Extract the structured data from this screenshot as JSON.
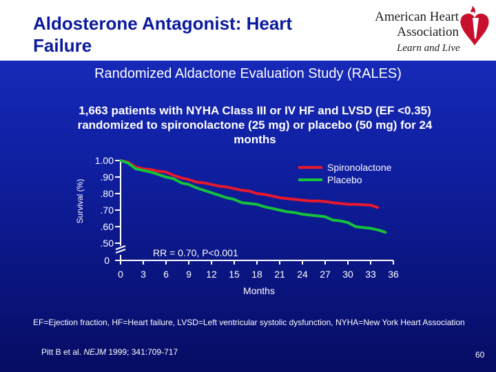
{
  "slide": {
    "title": "Aldosterone Antagonist: Heart Failure",
    "subtitle": "Randomized Aldactone Evaluation Study (RALES)",
    "description": "1,663 patients with NYHA Class III or IV HF and LVSD (EF <0.35) randomized to spironolactone (25 mg) or placebo (50 mg) for 24 months",
    "footnote": "EF=Ejection fraction, HF=Heart failure, LVSD=Left ventricular systolic dysfunction, NYHA=New York Heart Association",
    "citation_pre": "Pitt B et al. ",
    "citation_journal": "NEJM",
    "citation_post": " 1999; 341:709-717",
    "page_number": "60"
  },
  "logo": {
    "line1": "American Heart",
    "line2": "Association",
    "tagline": "Learn and Live"
  },
  "chart_data": {
    "type": "line",
    "title": "",
    "xlabel": "Months",
    "ylabel": "Survival (%)",
    "x_ticks": [
      0,
      3,
      6,
      9,
      12,
      15,
      18,
      21,
      24,
      27,
      30,
      33,
      36
    ],
    "y_ticks": [
      1.0,
      0.9,
      0.8,
      0.7,
      0.6,
      0.5
    ],
    "y_tick_labels": [
      "1.00",
      ".90",
      ".80",
      ".70",
      ".60",
      ".50"
    ],
    "y_zero_label": "0",
    "xlim": [
      0,
      36
    ],
    "ylim": [
      0.5,
      1.0
    ],
    "axis_break": true,
    "annotation": "RR = 0.70, P<0.001",
    "legend_position": "top-right",
    "colors": {
      "Spironolactone": "#e8192c",
      "Placebo": "#16c23a",
      "axis": "#ffffff"
    },
    "series": [
      {
        "name": "Spironolactone",
        "x": [
          0,
          1,
          2,
          3,
          4,
          5,
          6,
          7,
          8,
          9,
          10,
          11,
          12,
          13,
          14,
          15,
          16,
          17,
          18,
          19,
          20,
          21,
          22,
          23,
          24,
          25,
          26,
          27,
          28,
          29,
          30,
          31,
          32,
          33,
          34
        ],
        "y": [
          1.0,
          0.99,
          0.96,
          0.95,
          0.945,
          0.935,
          0.93,
          0.91,
          0.895,
          0.885,
          0.87,
          0.865,
          0.855,
          0.845,
          0.84,
          0.83,
          0.82,
          0.815,
          0.8,
          0.795,
          0.785,
          0.775,
          0.77,
          0.765,
          0.76,
          0.755,
          0.755,
          0.752,
          0.745,
          0.74,
          0.735,
          0.735,
          0.732,
          0.73,
          0.715
        ]
      },
      {
        "name": "Placebo",
        "x": [
          0,
          1,
          2,
          3,
          4,
          5,
          6,
          7,
          8,
          9,
          10,
          11,
          12,
          13,
          14,
          15,
          16,
          17,
          18,
          19,
          20,
          21,
          22,
          23,
          24,
          25,
          26,
          27,
          28,
          29,
          30,
          31,
          32,
          33,
          34,
          35
        ],
        "y": [
          1.0,
          0.985,
          0.95,
          0.94,
          0.93,
          0.915,
          0.9,
          0.89,
          0.865,
          0.855,
          0.835,
          0.82,
          0.805,
          0.79,
          0.775,
          0.765,
          0.745,
          0.74,
          0.735,
          0.72,
          0.71,
          0.7,
          0.69,
          0.685,
          0.675,
          0.67,
          0.665,
          0.66,
          0.64,
          0.635,
          0.625,
          0.6,
          0.595,
          0.59,
          0.58,
          0.565
        ]
      }
    ]
  }
}
